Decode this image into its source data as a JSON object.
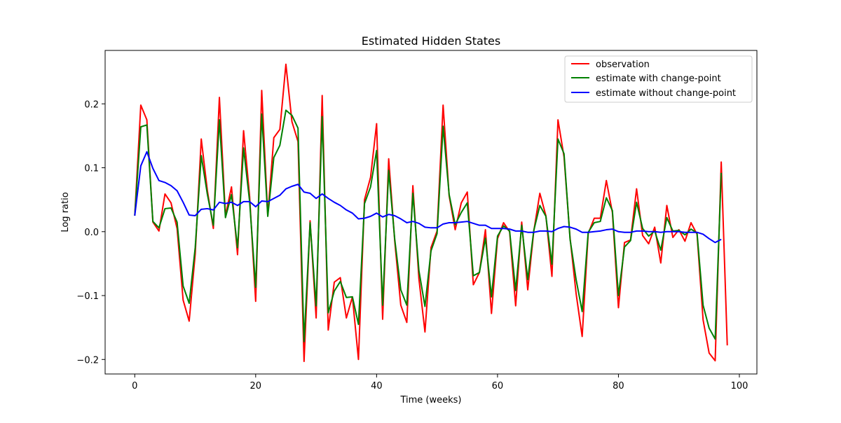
{
  "chart_data": {
    "type": "line",
    "title": "Estimated Hidden States",
    "xlabel": "Time (weeks)",
    "ylabel": "Log ratio",
    "xlim": [
      -4.9,
      102.9
    ],
    "ylim": [
      -0.2227,
      0.2836
    ],
    "xticks": [
      0,
      20,
      40,
      60,
      80,
      100
    ],
    "yticks": [
      -0.2,
      -0.1,
      0.0,
      0.1,
      0.2
    ],
    "xtick_labels": [
      "0",
      "20",
      "40",
      "60",
      "80",
      "100"
    ],
    "ytick_labels": [
      "−0.2",
      "−0.1",
      "0.0",
      "0.1",
      "0.2"
    ],
    "grid": false,
    "legend_position": "top-right",
    "series": [
      {
        "name": "observation",
        "color": "#ff0000",
        "values": [
          0.025,
          0.198,
          0.175,
          0.015,
          0.001,
          0.059,
          0.045,
          0.005,
          -0.107,
          -0.14,
          -0.035,
          0.145,
          0.065,
          0.005,
          0.21,
          0.025,
          0.07,
          -0.036,
          0.158,
          0.055,
          -0.109,
          0.221,
          0.025,
          0.147,
          0.16,
          0.262,
          0.172,
          0.141,
          -0.203,
          0.017,
          -0.135,
          0.213,
          -0.154,
          -0.079,
          -0.072,
          -0.135,
          -0.102,
          -0.2,
          0.05,
          0.085,
          0.169,
          -0.137,
          0.114,
          -0.015,
          -0.115,
          -0.142,
          0.072,
          -0.074,
          -0.157,
          -0.025,
          0.001,
          0.198,
          0.056,
          0.003,
          0.045,
          0.062,
          -0.083,
          -0.064,
          0.003,
          -0.128,
          -0.011,
          0.014,
          0.0,
          -0.116,
          0.015,
          -0.091,
          0.001,
          0.06,
          0.025,
          -0.07,
          0.175,
          0.117,
          -0.01,
          -0.097,
          -0.164,
          -0.003,
          0.021,
          0.021,
          0.08,
          0.03,
          -0.119,
          -0.017,
          -0.013,
          0.067,
          -0.006,
          -0.019,
          0.007,
          -0.049,
          0.041,
          -0.009,
          0.003,
          -0.015,
          0.014,
          -0.004,
          -0.138,
          -0.19,
          -0.202,
          0.109,
          -0.178
        ]
      },
      {
        "name": "estimate with change-point",
        "color": "#008000",
        "values": [
          0.025,
          0.164,
          0.167,
          0.016,
          0.006,
          0.036,
          0.037,
          0.015,
          -0.085,
          -0.112,
          -0.025,
          0.119,
          0.059,
          0.01,
          0.175,
          0.022,
          0.058,
          -0.025,
          0.131,
          0.047,
          -0.087,
          0.184,
          0.024,
          0.116,
          0.135,
          0.19,
          0.182,
          0.162,
          -0.172,
          0.014,
          -0.116,
          0.18,
          -0.127,
          -0.093,
          -0.078,
          -0.103,
          -0.102,
          -0.145,
          0.044,
          0.07,
          0.127,
          -0.115,
          0.096,
          -0.012,
          -0.091,
          -0.115,
          0.06,
          -0.061,
          -0.117,
          -0.03,
          -0.003,
          0.165,
          0.058,
          0.011,
          0.03,
          0.045,
          -0.069,
          -0.064,
          -0.01,
          -0.102,
          -0.007,
          0.009,
          0.001,
          -0.092,
          0.01,
          -0.075,
          0.002,
          0.041,
          0.024,
          -0.051,
          0.145,
          0.122,
          -0.012,
          -0.075,
          -0.125,
          -0.001,
          0.014,
          0.016,
          0.053,
          0.033,
          -0.1,
          -0.024,
          -0.014,
          0.046,
          0.005,
          -0.007,
          0.001,
          -0.029,
          0.022,
          0.001,
          0.002,
          -0.005,
          0.004,
          -0.002,
          -0.115,
          -0.151,
          -0.168,
          0.092
        ]
      },
      {
        "name": "estimate without change-point",
        "color": "#0000ff",
        "values": [
          0.025,
          0.103,
          0.125,
          0.099,
          0.08,
          0.077,
          0.072,
          0.064,
          0.046,
          0.026,
          0.025,
          0.035,
          0.036,
          0.034,
          0.046,
          0.044,
          0.046,
          0.041,
          0.047,
          0.047,
          0.039,
          0.048,
          0.047,
          0.052,
          0.057,
          0.067,
          0.071,
          0.074,
          0.062,
          0.06,
          0.052,
          0.059,
          0.052,
          0.046,
          0.041,
          0.034,
          0.029,
          0.02,
          0.021,
          0.024,
          0.029,
          0.023,
          0.027,
          0.025,
          0.02,
          0.014,
          0.016,
          0.013,
          0.007,
          0.006,
          0.006,
          0.012,
          0.014,
          0.014,
          0.015,
          0.016,
          0.013,
          0.01,
          0.01,
          0.005,
          0.005,
          0.005,
          0.004,
          0.001,
          0.001,
          -0.001,
          -0.001,
          0.001,
          0.001,
          0.0,
          0.005,
          0.008,
          0.007,
          0.004,
          -0.001,
          -0.001,
          0.0,
          0.001,
          0.003,
          0.004,
          0.0,
          -0.001,
          -0.001,
          0.001,
          0.001,
          0.0,
          0.0,
          -0.001,
          0.0,
          0.0,
          0.0,
          -0.001,
          -0.001,
          -0.001,
          -0.004,
          -0.011,
          -0.017,
          -0.012
        ]
      }
    ]
  }
}
